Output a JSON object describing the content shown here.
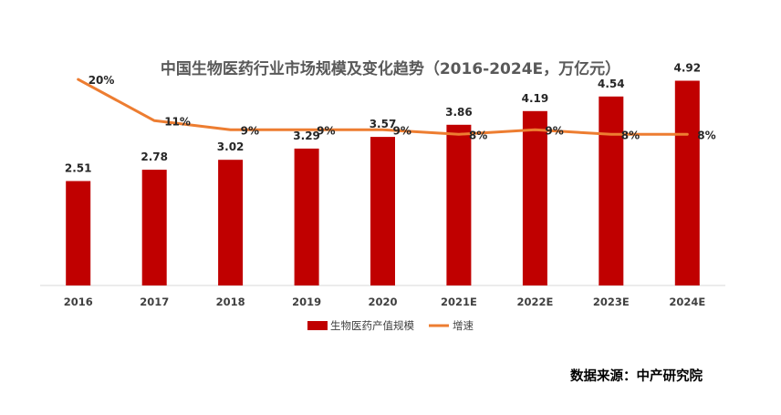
{
  "chart_data": {
    "type": "bar",
    "title": "中国生物医药行业市场规模及变化趋势（2016-2024E，万亿元）",
    "categories": [
      "2016",
      "2017",
      "2018",
      "2019",
      "2020",
      "2021E",
      "2022E",
      "2023E",
      "2024E"
    ],
    "series": [
      {
        "name": "生物医药产值规模",
        "type": "bar",
        "values": [
          2.51,
          2.78,
          3.02,
          3.29,
          3.57,
          3.86,
          4.19,
          4.54,
          4.92
        ],
        "labels": [
          "2.51",
          "2.78",
          "3.02",
          "3.29",
          "3.57",
          "3.86",
          "4.19",
          "4.54",
          "4.92"
        ],
        "color": "#C00000"
      },
      {
        "name": "增速",
        "type": "line",
        "values": [
          20,
          11,
          9,
          9,
          9,
          8,
          9,
          8,
          8
        ],
        "labels": [
          "20%",
          "11%",
          "9%",
          "9%",
          "9%",
          "8%",
          "9%",
          "8%",
          "8%"
        ],
        "color": "#ED7D31"
      }
    ],
    "ylim": [
      0,
      5.5
    ],
    "y2lim": [
      -25,
      25
    ],
    "grid": false,
    "legend": "bottom",
    "source": "数据来源：中产研究院"
  }
}
